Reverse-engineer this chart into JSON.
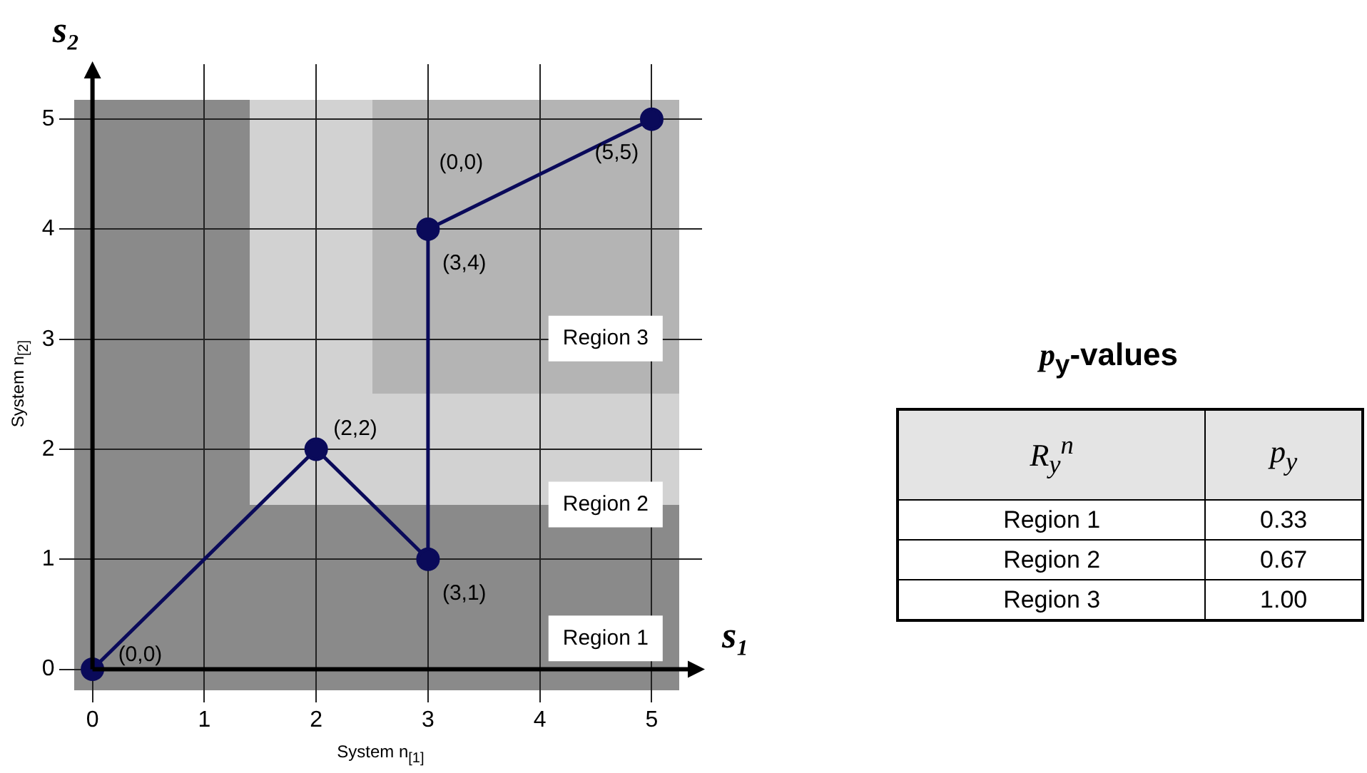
{
  "chart_data": [
    {
      "type": "line",
      "xlabel": "System n$_{[1]}$",
      "ylabel": "System n$_{[2]}$",
      "xlim": [
        -0.3,
        5.45
      ],
      "ylim": [
        -0.3,
        5.5
      ],
      "xticks": [
        0,
        1,
        2,
        3,
        4,
        5
      ],
      "yticks": [
        0,
        1,
        2,
        3,
        4,
        5
      ],
      "grid": true,
      "marker": "circle",
      "line_style": "solid",
      "series": [
        {
          "type": "line",
          "color": "#0a0a5a",
          "x": [
            0,
            2,
            3,
            3,
            5
          ],
          "values": [
            0,
            2,
            1,
            4,
            5
          ]
        }
      ],
      "annotations": [
        {
          "text": "(0,0)",
          "x": 0,
          "y": 0
        },
        {
          "text": "(2,2)",
          "x": 2,
          "y": 2
        },
        {
          "text": "(3,1)",
          "x": 3,
          "y": 1
        },
        {
          "text": "(3,4)",
          "x": 3,
          "y": 4
        },
        {
          "text": "(5,5)",
          "x": 5,
          "y": 5
        },
        "(0,0)",
        "s₁",
        "s₂",
        "Region 3",
        "Region 2",
        "Region 1"
      ]
    },
    {
      "type": "other",
      "title": "p$_{y}$-values",
      "annotations": [
        "R$_{y}$$^{n}$",
        "p$_{y}$",
        "Region 1",
        "0.33",
        "Region 2",
        "0.67",
        "Region 3",
        "1.00"
      ]
    }
  ]
}
